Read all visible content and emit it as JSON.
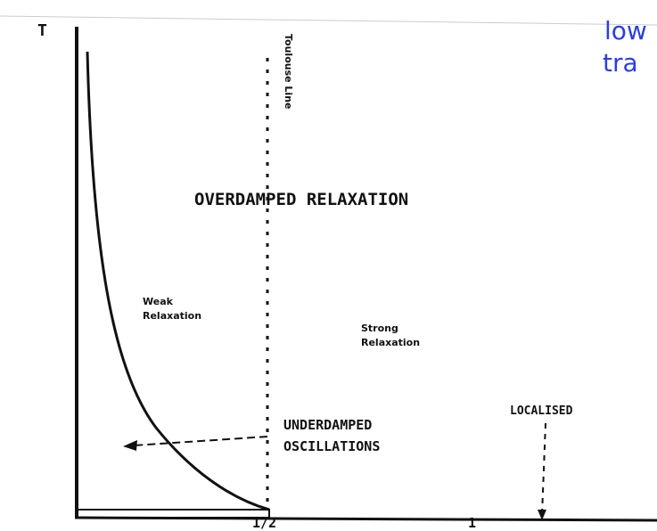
{
  "axis": {
    "y_label": "T",
    "x_ticks": [
      "1/2",
      "1"
    ]
  },
  "toulouse_line": "Toulouse Line",
  "regions": {
    "overdamped": "OVERDAMPED RELAXATION",
    "weak": [
      "Weak",
      "Relaxation"
    ],
    "strong": [
      "Strong",
      "Relaxation"
    ],
    "underdamped": [
      "UNDERDAMPED",
      "OSCILLATIONS"
    ],
    "localised": "LOCALISED"
  },
  "overlay": [
    "low",
    "tra"
  ]
}
